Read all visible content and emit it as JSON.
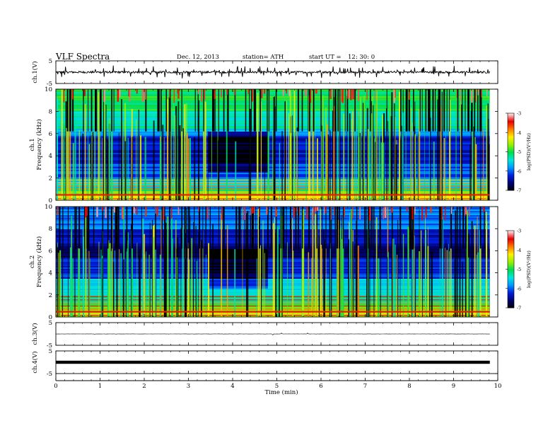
{
  "header": {
    "title": "VLF  Spectra",
    "date": "Dec. 12,  2013",
    "station": "station= ATH",
    "start_label": "start  UT  =",
    "start_time": "12: 30: 0"
  },
  "chart_data": {
    "type": "heatmap",
    "xlabel": "Time  (min)",
    "x_ticks": [
      "0",
      "1",
      "2",
      "3",
      "4",
      "5",
      "6",
      "7",
      "8",
      "9",
      "10"
    ],
    "xlim": [
      0,
      10
    ],
    "data_end_min": 9.82,
    "panels": [
      {
        "kind": "waveform",
        "ylabel": "ch.1(V)",
        "ylim": [
          -5,
          5
        ],
        "y_ticks": [
          "5",
          "-5"
        ],
        "trace": {
          "baseline": 0,
          "noise_amp": 0.45,
          "spike_amp": 1.8,
          "spike_count": 90,
          "weight": "thick"
        }
      },
      {
        "kind": "spectrogram",
        "channel_label": "ch.1",
        "ylabel": "Frequency  (kHz)",
        "ylim": [
          0,
          10
        ],
        "y_ticks": [
          "0",
          "2",
          "4",
          "6",
          "8",
          "10"
        ],
        "colorbar": {
          "label": "log(PSD)(V²/Hz)",
          "ticks": [
            "-3",
            "-4",
            "-5",
            "-6",
            "-7"
          ],
          "range": [
            -7,
            -3
          ]
        },
        "quiet_interval_min": [
          3.45,
          4.8
        ],
        "bands": [
          {
            "from_khz": 0.0,
            "to_khz": 0.5,
            "log_psd": -4.2
          },
          {
            "from_khz": 0.5,
            "to_khz": 1.2,
            "log_psd": -4.9
          },
          {
            "from_khz": 1.2,
            "to_khz": 2.0,
            "log_psd": -5.6
          },
          {
            "from_khz": 2.0,
            "to_khz": 3.5,
            "log_psd": -6.0
          },
          {
            "from_khz": 3.5,
            "to_khz": 5.8,
            "log_psd": -6.3
          },
          {
            "from_khz": 5.8,
            "to_khz": 6.5,
            "log_psd": -5.6
          },
          {
            "from_khz": 6.5,
            "to_khz": 8.0,
            "log_psd": -5.3
          },
          {
            "from_khz": 8.0,
            "to_khz": 10.0,
            "log_psd": -5.0
          }
        ]
      },
      {
        "kind": "spectrogram",
        "channel_label": "ch.2",
        "ylabel": "Frequency  (kHz)",
        "ylim": [
          0,
          10
        ],
        "y_ticks": [
          "0",
          "2",
          "4",
          "6",
          "8",
          "10"
        ],
        "colorbar": {
          "label": "log(PSD)(V²/Hz)",
          "ticks": [
            "-3",
            "-4",
            "-5",
            "-6",
            "-7"
          ],
          "range": [
            -7,
            -3
          ]
        },
        "quiet_interval_min": [
          3.45,
          4.8
        ],
        "bands": [
          {
            "from_khz": 0.0,
            "to_khz": 0.5,
            "log_psd": -4.4
          },
          {
            "from_khz": 0.5,
            "to_khz": 1.2,
            "log_psd": -4.8
          },
          {
            "from_khz": 1.2,
            "to_khz": 2.0,
            "log_psd": -5.2
          },
          {
            "from_khz": 2.0,
            "to_khz": 3.5,
            "log_psd": -5.5
          },
          {
            "from_khz": 3.5,
            "to_khz": 5.5,
            "log_psd": -6.2
          },
          {
            "from_khz": 5.5,
            "to_khz": 6.5,
            "log_psd": -6.6
          },
          {
            "from_khz": 6.5,
            "to_khz": 8.0,
            "log_psd": -6.4
          },
          {
            "from_khz": 8.0,
            "to_khz": 10.0,
            "log_psd": -5.9
          }
        ]
      },
      {
        "kind": "waveform",
        "ylabel": "ch.3(V)",
        "ylim": [
          -5,
          5
        ],
        "y_ticks": [
          "5",
          "-5"
        ],
        "trace": {
          "baseline": 0,
          "noise_amp": 0.05,
          "spike_amp": 0.3,
          "spike_count": 4,
          "weight": "thin"
        }
      },
      {
        "kind": "waveform",
        "ylabel": "ch.4(V)",
        "ylim": [
          -5,
          5
        ],
        "y_ticks": [
          "5",
          "-5"
        ],
        "trace": {
          "baseline": 0,
          "noise_amp": 0.3,
          "spike_amp": 0.3,
          "spike_count": 0,
          "weight": "band"
        }
      }
    ]
  }
}
